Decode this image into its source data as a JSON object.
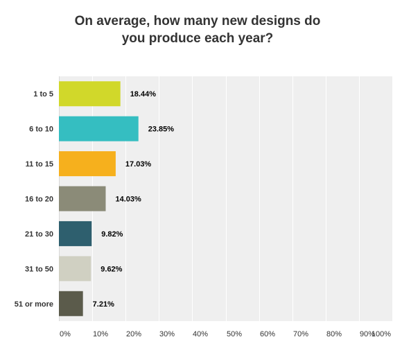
{
  "chart_data": {
    "type": "bar",
    "orientation": "horizontal",
    "title_lines": [
      "On average, how many new designs do",
      "you produce each year?"
    ],
    "categories": [
      "1 to 5",
      "6 to 10",
      "11 to 15",
      "16 to 20",
      "21 to 30",
      "31 to 50",
      "51 or more"
    ],
    "values": [
      18.44,
      23.85,
      17.03,
      14.03,
      9.82,
      9.62,
      7.21
    ],
    "value_labels": [
      "18.44%",
      "23.85%",
      "17.03%",
      "14.03%",
      "9.82%",
      "9.62%",
      "7.21%"
    ],
    "colors": [
      "#d1d82a",
      "#35bec1",
      "#f6b01d",
      "#8b8b78",
      "#2e5f6e",
      "#d0d0c2",
      "#5b5b4b"
    ],
    "xlim": [
      0,
      100
    ],
    "x_ticks": [
      0,
      10,
      20,
      30,
      40,
      50,
      60,
      70,
      80,
      90,
      100
    ],
    "x_tick_labels": [
      "0%",
      "10%",
      "20%",
      "30%",
      "40%",
      "50%",
      "60%",
      "70%",
      "80%",
      "90%",
      "100%"
    ],
    "grid": true,
    "plot_background": "#efefef",
    "grid_color": "#ffffff"
  }
}
